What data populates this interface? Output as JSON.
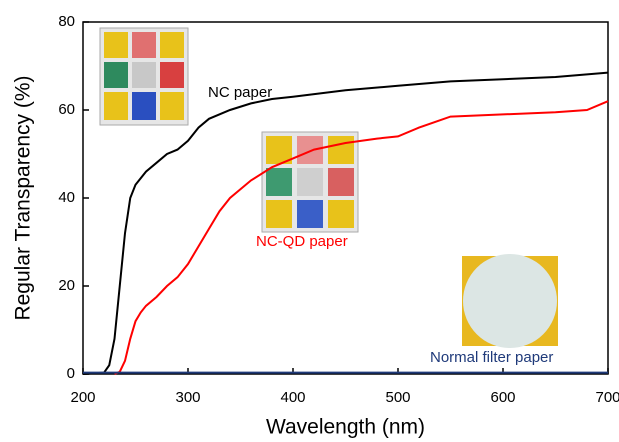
{
  "chart_data": {
    "type": "line",
    "x_label": "Wavelength (nm)",
    "y_label": "Regular Transparency (%)",
    "xlim": [
      200,
      700
    ],
    "ylim": [
      0,
      80
    ],
    "xticks": [
      200,
      300,
      400,
      500,
      600,
      700
    ],
    "yticks": [
      0,
      20,
      40,
      60,
      80
    ],
    "series": [
      {
        "name": "NC paper",
        "color": "#000000",
        "x": [
          200,
          220,
          225,
          230,
          235,
          240,
          245,
          250,
          260,
          270,
          280,
          290,
          300,
          310,
          320,
          340,
          360,
          380,
          400,
          450,
          500,
          550,
          600,
          650,
          700
        ],
        "values": [
          0,
          0.3,
          2,
          8,
          20,
          32,
          40,
          43,
          46,
          48,
          50,
          51,
          53,
          56,
          58,
          60,
          61.5,
          62.5,
          63,
          64.5,
          65.5,
          66.5,
          67,
          67.5,
          68.5
        ]
      },
      {
        "name": "NC-QD paper",
        "color": "#ff0000",
        "x": [
          230,
          235,
          240,
          245,
          250,
          255,
          260,
          270,
          280,
          290,
          300,
          310,
          320,
          330,
          340,
          360,
          380,
          400,
          420,
          450,
          480,
          500,
          520,
          550,
          600,
          650,
          680,
          700
        ],
        "values": [
          0,
          0.5,
          3,
          8,
          12,
          14,
          15.5,
          17.5,
          20,
          22,
          25,
          29,
          33,
          37,
          40,
          44,
          47,
          49,
          51,
          52.5,
          53.5,
          54,
          56,
          58.5,
          59,
          59.5,
          60,
          62
        ]
      },
      {
        "name": "Normal filter paper",
        "color": "#1f3a7a",
        "x": [
          200,
          300,
          400,
          500,
          600,
          700
        ],
        "values": [
          0.3,
          0.3,
          0.3,
          0.3,
          0.3,
          0.3
        ]
      }
    ]
  }
}
